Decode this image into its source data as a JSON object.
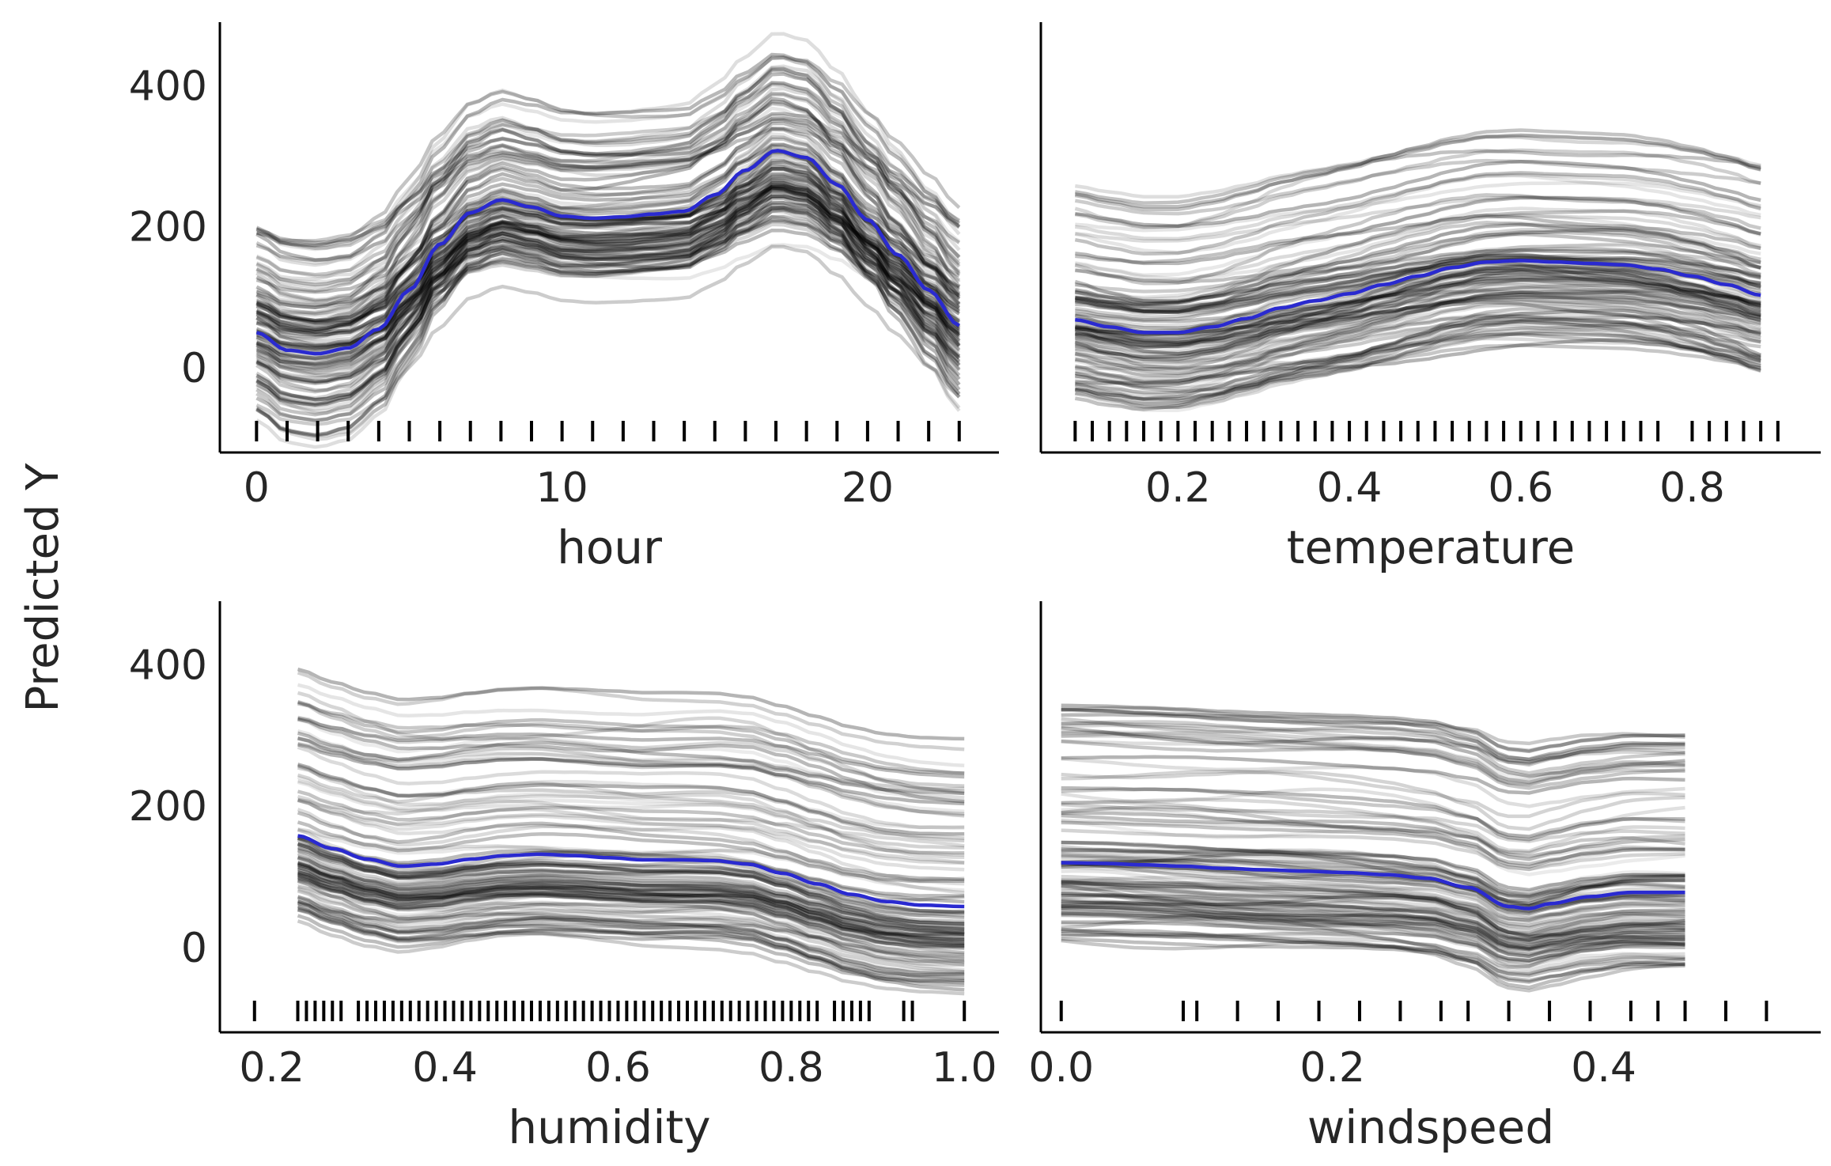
{
  "figure": {
    "ylabel": "Predicted Y"
  },
  "chart_data": [
    {
      "type": "line",
      "xlabel": "hour",
      "ylabel": "Predicted Y",
      "xlim": [
        -1.2,
        24.3
      ],
      "ylim": [
        -120,
        490
      ],
      "xticks": [
        0,
        10,
        20
      ],
      "xtick_labels": [
        "0",
        "10",
        "20"
      ],
      "yticks": [
        0,
        200,
        400
      ],
      "ytick_labels": [
        "0",
        "200",
        "400"
      ],
      "mean_x": [
        0,
        1,
        2,
        3,
        4,
        5,
        6,
        7,
        8,
        9,
        10,
        11,
        12,
        13,
        14,
        15,
        16,
        17,
        18,
        19,
        20,
        21,
        22,
        23
      ],
      "mean_y": [
        50,
        25,
        20,
        28,
        55,
        110,
        175,
        220,
        238,
        228,
        215,
        212,
        214,
        218,
        222,
        245,
        280,
        308,
        298,
        260,
        210,
        160,
        110,
        60
      ],
      "rug": [
        0,
        1,
        2,
        3,
        4,
        5,
        6,
        7,
        8,
        9,
        10,
        11,
        12,
        13,
        14,
        15,
        16,
        17,
        18,
        19,
        20,
        21,
        22,
        23
      ],
      "series_colors": {
        "mean": "#2a2ad0",
        "ice": "#000000"
      }
    },
    {
      "type": "line",
      "xlabel": "temperature",
      "ylabel": "Predicted Y",
      "xlim": [
        0.04,
        0.95
      ],
      "ylim": [
        -120,
        490
      ],
      "xticks": [
        0.2,
        0.4,
        0.6,
        0.8
      ],
      "xtick_labels": [
        "0.2",
        "0.4",
        "0.6",
        "0.8"
      ],
      "yticks": [
        0,
        200,
        400
      ],
      "ytick_labels": [],
      "mean_x": [
        0.08,
        0.12,
        0.16,
        0.2,
        0.24,
        0.28,
        0.32,
        0.36,
        0.4,
        0.44,
        0.48,
        0.52,
        0.56,
        0.6,
        0.64,
        0.68,
        0.72,
        0.76,
        0.8,
        0.84,
        0.88
      ],
      "mean_y": [
        68,
        58,
        50,
        50,
        58,
        70,
        85,
        95,
        105,
        118,
        130,
        142,
        150,
        152,
        150,
        148,
        146,
        140,
        130,
        118,
        103
      ],
      "rug": [
        0.08,
        0.1,
        0.12,
        0.14,
        0.16,
        0.18,
        0.2,
        0.22,
        0.24,
        0.26,
        0.28,
        0.3,
        0.32,
        0.34,
        0.36,
        0.38,
        0.4,
        0.42,
        0.44,
        0.46,
        0.48,
        0.5,
        0.52,
        0.54,
        0.56,
        0.58,
        0.6,
        0.62,
        0.64,
        0.66,
        0.68,
        0.7,
        0.72,
        0.74,
        0.76,
        0.8,
        0.82,
        0.84,
        0.86,
        0.88,
        0.9
      ],
      "series_colors": {
        "mean": "#2a2ad0",
        "ice": "#000000"
      }
    },
    {
      "type": "line",
      "xlabel": "humidity",
      "ylabel": "Predicted Y",
      "xlim": [
        0.14,
        1.04
      ],
      "ylim": [
        -120,
        490
      ],
      "xticks": [
        0.2,
        0.4,
        0.6,
        0.8,
        1.0
      ],
      "xtick_labels": [
        "0.2",
        "0.4",
        "0.6",
        "0.8",
        "1.0"
      ],
      "yticks": [
        0,
        200,
        400
      ],
      "ytick_labels": [
        "0",
        "200",
        "400"
      ],
      "mean_x": [
        0.23,
        0.27,
        0.31,
        0.35,
        0.39,
        0.43,
        0.47,
        0.51,
        0.55,
        0.59,
        0.63,
        0.67,
        0.71,
        0.75,
        0.79,
        0.83,
        0.87,
        0.91,
        0.95,
        1.0
      ],
      "mean_y": [
        158,
        140,
        125,
        115,
        118,
        125,
        130,
        132,
        130,
        127,
        124,
        124,
        123,
        118,
        105,
        90,
        75,
        65,
        60,
        58
      ],
      "rug": [
        0.18,
        0.23,
        0.24,
        0.25,
        0.26,
        0.27,
        0.28,
        0.3,
        0.31,
        0.32,
        0.33,
        0.34,
        0.35,
        0.36,
        0.37,
        0.38,
        0.39,
        0.4,
        0.41,
        0.42,
        0.43,
        0.44,
        0.45,
        0.46,
        0.47,
        0.48,
        0.49,
        0.5,
        0.51,
        0.52,
        0.53,
        0.54,
        0.55,
        0.56,
        0.57,
        0.58,
        0.59,
        0.6,
        0.61,
        0.62,
        0.63,
        0.64,
        0.65,
        0.66,
        0.67,
        0.68,
        0.69,
        0.7,
        0.71,
        0.72,
        0.73,
        0.74,
        0.75,
        0.76,
        0.77,
        0.78,
        0.79,
        0.8,
        0.81,
        0.82,
        0.83,
        0.85,
        0.86,
        0.87,
        0.88,
        0.89,
        0.93,
        0.94,
        1.0
      ],
      "series_colors": {
        "mean": "#2a2ad0",
        "ice": "#000000"
      }
    },
    {
      "type": "line",
      "xlabel": "windspeed",
      "ylabel": "Predicted Y",
      "xlim": [
        -0.015,
        0.56
      ],
      "ylim": [
        -120,
        490
      ],
      "xticks": [
        0.0,
        0.2,
        0.4
      ],
      "xtick_labels": [
        "0.0",
        "0.2",
        "0.4"
      ],
      "yticks": [
        0,
        200,
        400
      ],
      "ytick_labels": [],
      "mean_x": [
        0.0,
        0.03,
        0.06,
        0.09,
        0.12,
        0.15,
        0.18,
        0.21,
        0.24,
        0.27,
        0.3,
        0.33,
        0.345,
        0.36,
        0.39,
        0.42,
        0.46
      ],
      "mean_y": [
        120,
        119,
        117,
        115,
        112,
        110,
        108,
        106,
        103,
        98,
        85,
        58,
        55,
        62,
        72,
        78,
        78
      ],
      "rug": [
        0.0,
        0.09,
        0.1,
        0.13,
        0.16,
        0.19,
        0.22,
        0.25,
        0.28,
        0.3,
        0.33,
        0.36,
        0.39,
        0.42,
        0.44,
        0.46,
        0.49,
        0.52
      ],
      "series_colors": {
        "mean": "#2a2ad0",
        "ice": "#000000"
      }
    }
  ]
}
